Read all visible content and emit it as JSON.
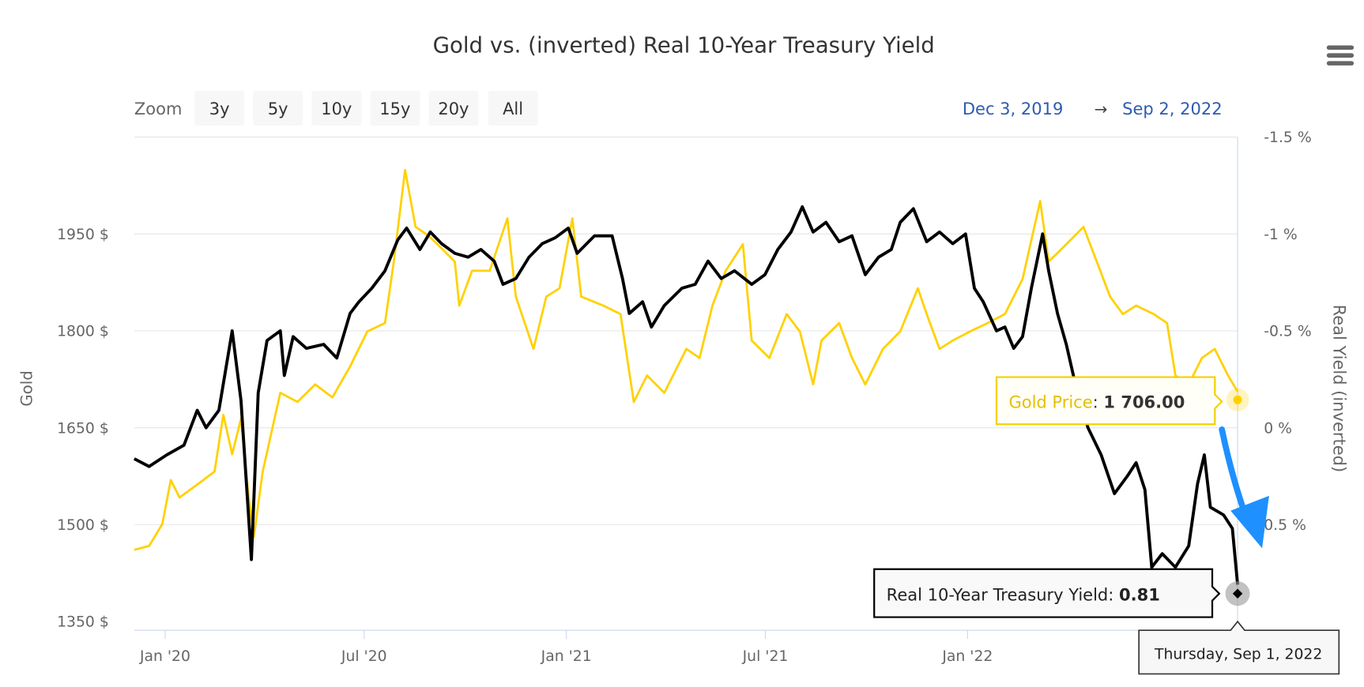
{
  "chart_data": {
    "type": "line",
    "title": "Gold vs. (inverted) Real 10-Year Treasury Yield",
    "x_unit": "decimal year",
    "xlim": [
      2019.923,
      2022.673
    ],
    "x_ticks": [
      {
        "x": 2020.0,
        "label": "Jan '20"
      },
      {
        "x": 2020.496,
        "label": "Jul '20"
      },
      {
        "x": 2021.0,
        "label": "Jan '21"
      },
      {
        "x": 2021.496,
        "label": "Jul '21"
      },
      {
        "x": 2022.0,
        "label": "Jan '22"
      }
    ],
    "y_left": {
      "label": "Gold",
      "range": [
        1350,
        2100
      ],
      "ticks": [
        {
          "v": 1350,
          "label": "1350 $"
        },
        {
          "v": 1500,
          "label": "1500 $"
        },
        {
          "v": 1650,
          "label": "1650 $"
        },
        {
          "v": 1800,
          "label": "1800 $"
        },
        {
          "v": 1950,
          "label": "1950 $"
        }
      ]
    },
    "y_right": {
      "label": "Real Yield (inverted)",
      "range": [
        1.0,
        -1.5
      ],
      "inverted": true,
      "ticks": [
        {
          "v": -1.5,
          "label": "-1.5 %"
        },
        {
          "v": -1,
          "label": "-1 %"
        },
        {
          "v": -0.5,
          "label": "-0.5 %"
        },
        {
          "v": 0,
          "label": "0 %"
        },
        {
          "v": 0.5,
          "label": "0.5 %"
        }
      ]
    },
    "grid": true,
    "series": [
      {
        "name": "Gold Price",
        "axis": "left",
        "color": "#FFD100",
        "points": [
          [
            2019.923,
            1461
          ],
          [
            2019.96,
            1467
          ],
          [
            2019.993,
            1501
          ],
          [
            2020.014,
            1569
          ],
          [
            2020.036,
            1542
          ],
          [
            2020.08,
            1562
          ],
          [
            2020.123,
            1582
          ],
          [
            2020.145,
            1670
          ],
          [
            2020.167,
            1609
          ],
          [
            2020.189,
            1664
          ],
          [
            2020.206,
            1555
          ],
          [
            2020.221,
            1481
          ],
          [
            2020.243,
            1582
          ],
          [
            2020.287,
            1704
          ],
          [
            2020.33,
            1690
          ],
          [
            2020.374,
            1717
          ],
          [
            2020.417,
            1697
          ],
          [
            2020.461,
            1745
          ],
          [
            2020.504,
            1799
          ],
          [
            2020.548,
            1812
          ],
          [
            2020.57,
            1907
          ],
          [
            2020.598,
            2049
          ],
          [
            2020.624,
            1961
          ],
          [
            2020.657,
            1947
          ],
          [
            2020.69,
            1927
          ],
          [
            2020.722,
            1907
          ],
          [
            2020.733,
            1839
          ],
          [
            2020.765,
            1893
          ],
          [
            2020.809,
            1893
          ],
          [
            2020.853,
            1974
          ],
          [
            2020.874,
            1853
          ],
          [
            2020.918,
            1772
          ],
          [
            2020.95,
            1853
          ],
          [
            2020.983,
            1866
          ],
          [
            2021.015,
            1974
          ],
          [
            2021.037,
            1853
          ],
          [
            2021.092,
            1839
          ],
          [
            2021.135,
            1826
          ],
          [
            2021.168,
            1690
          ],
          [
            2021.201,
            1731
          ],
          [
            2021.244,
            1704
          ],
          [
            2021.299,
            1772
          ],
          [
            2021.332,
            1758
          ],
          [
            2021.364,
            1839
          ],
          [
            2021.397,
            1893
          ],
          [
            2021.44,
            1934
          ],
          [
            2021.462,
            1785
          ],
          [
            2021.506,
            1758
          ],
          [
            2021.549,
            1826
          ],
          [
            2021.582,
            1799
          ],
          [
            2021.615,
            1717
          ],
          [
            2021.636,
            1785
          ],
          [
            2021.68,
            1812
          ],
          [
            2021.712,
            1758
          ],
          [
            2021.745,
            1717
          ],
          [
            2021.789,
            1772
          ],
          [
            2021.832,
            1799
          ],
          [
            2021.876,
            1866
          ],
          [
            2021.898,
            1826
          ],
          [
            2021.93,
            1772
          ],
          [
            2021.963,
            1785
          ],
          [
            2022.006,
            1799
          ],
          [
            2022.05,
            1812
          ],
          [
            2022.093,
            1826
          ],
          [
            2022.137,
            1880
          ],
          [
            2022.181,
            2001
          ],
          [
            2022.202,
            1907
          ],
          [
            2022.246,
            1934
          ],
          [
            2022.289,
            1961
          ],
          [
            2022.322,
            1907
          ],
          [
            2022.355,
            1853
          ],
          [
            2022.387,
            1826
          ],
          [
            2022.42,
            1839
          ],
          [
            2022.464,
            1826
          ],
          [
            2022.497,
            1812
          ],
          [
            2022.518,
            1731
          ],
          [
            2022.551,
            1717
          ],
          [
            2022.584,
            1758
          ],
          [
            2022.616,
            1772
          ],
          [
            2022.649,
            1731
          ],
          [
            2022.673,
            1706
          ]
        ]
      },
      {
        "name": "Real 10-Year Treasury Yield",
        "axis": "right",
        "color": "#000000",
        "points": [
          [
            2019.923,
            0.16
          ],
          [
            2019.96,
            0.2
          ],
          [
            2020.004,
            0.14
          ],
          [
            2020.047,
            0.09
          ],
          [
            2020.08,
            -0.09
          ],
          [
            2020.102,
            0
          ],
          [
            2020.134,
            -0.09
          ],
          [
            2020.167,
            -0.5
          ],
          [
            2020.189,
            -0.14
          ],
          [
            2020.215,
            0.68
          ],
          [
            2020.232,
            -0.18
          ],
          [
            2020.254,
            -0.45
          ],
          [
            2020.287,
            -0.5
          ],
          [
            2020.297,
            -0.27
          ],
          [
            2020.319,
            -0.47
          ],
          [
            2020.352,
            -0.41
          ],
          [
            2020.395,
            -0.43
          ],
          [
            2020.428,
            -0.36
          ],
          [
            2020.461,
            -0.59
          ],
          [
            2020.483,
            -0.65
          ],
          [
            2020.515,
            -0.72
          ],
          [
            2020.548,
            -0.81
          ],
          [
            2020.58,
            -0.97
          ],
          [
            2020.602,
            -1.03
          ],
          [
            2020.635,
            -0.92
          ],
          [
            2020.661,
            -1.01
          ],
          [
            2020.689,
            -0.95
          ],
          [
            2020.722,
            -0.9
          ],
          [
            2020.755,
            -0.88
          ],
          [
            2020.787,
            -0.92
          ],
          [
            2020.82,
            -0.86
          ],
          [
            2020.842,
            -0.74
          ],
          [
            2020.874,
            -0.77
          ],
          [
            2020.907,
            -0.88
          ],
          [
            2020.94,
            -0.95
          ],
          [
            2020.972,
            -0.98
          ],
          [
            2021.005,
            -1.03
          ],
          [
            2021.027,
            -0.9
          ],
          [
            2021.07,
            -0.99
          ],
          [
            2021.114,
            -0.99
          ],
          [
            2021.14,
            -0.77
          ],
          [
            2021.157,
            -0.59
          ],
          [
            2021.19,
            -0.65
          ],
          [
            2021.212,
            -0.52
          ],
          [
            2021.244,
            -0.63
          ],
          [
            2021.288,
            -0.72
          ],
          [
            2021.321,
            -0.74
          ],
          [
            2021.353,
            -0.86
          ],
          [
            2021.386,
            -0.77
          ],
          [
            2021.419,
            -0.81
          ],
          [
            2021.462,
            -0.74
          ],
          [
            2021.495,
            -0.79
          ],
          [
            2021.527,
            -0.92
          ],
          [
            2021.56,
            -1.01
          ],
          [
            2021.588,
            -1.14
          ],
          [
            2021.615,
            -1.01
          ],
          [
            2021.647,
            -1.06
          ],
          [
            2021.68,
            -0.96
          ],
          [
            2021.712,
            -0.99
          ],
          [
            2021.745,
            -0.79
          ],
          [
            2021.778,
            -0.88
          ],
          [
            2021.81,
            -0.92
          ],
          [
            2021.832,
            -1.06
          ],
          [
            2021.865,
            -1.13
          ],
          [
            2021.898,
            -0.96
          ],
          [
            2021.93,
            -1.01
          ],
          [
            2021.963,
            -0.95
          ],
          [
            2021.995,
            -1.0
          ],
          [
            2022.017,
            -0.72
          ],
          [
            2022.039,
            -0.65
          ],
          [
            2022.072,
            -0.5
          ],
          [
            2022.093,
            -0.52
          ],
          [
            2022.115,
            -0.41
          ],
          [
            2022.137,
            -0.47
          ],
          [
            2022.159,
            -0.72
          ],
          [
            2022.187,
            -1.0
          ],
          [
            2022.202,
            -0.81
          ],
          [
            2022.224,
            -0.59
          ],
          [
            2022.246,
            -0.43
          ],
          [
            2022.268,
            -0.23
          ],
          [
            2022.3,
            0
          ],
          [
            2022.333,
            0.14
          ],
          [
            2022.366,
            0.34
          ],
          [
            2022.398,
            0.25
          ],
          [
            2022.42,
            0.18
          ],
          [
            2022.442,
            0.32
          ],
          [
            2022.459,
            0.72
          ],
          [
            2022.485,
            0.65
          ],
          [
            2022.518,
            0.72
          ],
          [
            2022.551,
            0.61
          ],
          [
            2022.573,
            0.29
          ],
          [
            2022.59,
            0.14
          ],
          [
            2022.605,
            0.41
          ],
          [
            2022.638,
            0.45
          ],
          [
            2022.66,
            0.52
          ],
          [
            2022.673,
            0.81
          ]
        ]
      }
    ],
    "legend": "none"
  },
  "range_selector": {
    "zoom_label": "Zoom",
    "buttons": [
      "3y",
      "5y",
      "10y",
      "15y",
      "20y",
      "All"
    ],
    "from": "Dec 3, 2019",
    "arrow": "→",
    "to": "Sep 2, 2022",
    "date_color": "#2f5bb0"
  },
  "tooltips": {
    "gold": {
      "name": "Gold Price",
      "value": "1 706.00"
    },
    "yield": {
      "name": "Real 10-Year Treasury Yield",
      "value": "0.81"
    },
    "date": "Thursday, Sep 1, 2022"
  },
  "menu_icon": "hamburger-menu-icon"
}
